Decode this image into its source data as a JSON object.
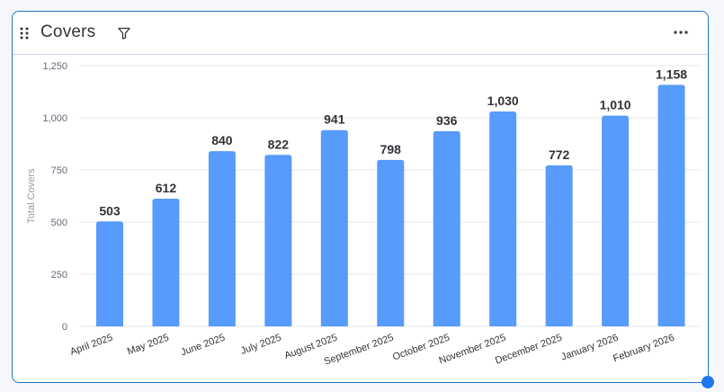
{
  "widget": {
    "title": "Covers",
    "icons": {
      "drag": "drag-handle-icon",
      "filter": "filter-icon",
      "more": "more-options-icon"
    }
  },
  "colors": {
    "bar": "#579bfc",
    "accent": "#1f76c2",
    "text": "#323338",
    "axis": "#676879",
    "grid": "#e6e9ef"
  },
  "chart_data": {
    "type": "bar",
    "categories": [
      "April 2025",
      "May 2025",
      "June 2025",
      "July 2025",
      "August 2025",
      "September 2025",
      "October 2025",
      "November 2025",
      "December 2025",
      "January 2026",
      "February 2026"
    ],
    "values": [
      503,
      612,
      840,
      822,
      941,
      798,
      936,
      1030,
      772,
      1010,
      1158
    ],
    "data_labels": [
      "503",
      "612",
      "840",
      "822",
      "941",
      "798",
      "936",
      "1,030",
      "772",
      "1,010",
      "1,158"
    ],
    "ylabel": "Total Covers",
    "xlabel": "",
    "ylim": [
      0,
      1250
    ],
    "yticks": [
      0,
      250,
      500,
      750,
      1000,
      1250
    ],
    "ytick_labels": [
      "0",
      "250",
      "500",
      "750",
      "1,000",
      "1,250"
    ],
    "grid": true,
    "legend": "none"
  }
}
